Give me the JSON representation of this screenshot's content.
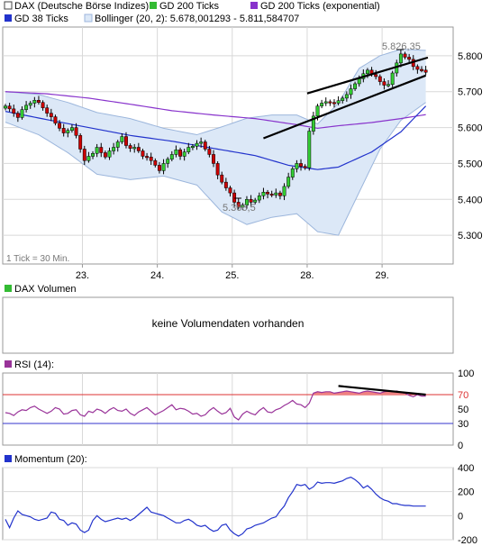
{
  "colors": {
    "price_bull": "#33cc33",
    "price_bear": "#cc0000",
    "gd38": "#2233cc",
    "gd200": "#33bb33",
    "gd200exp": "#8833cc",
    "bollinger_fill": "#dce8f7",
    "bollinger_line": "#9cb6dc",
    "rsi_line": "#993399",
    "rsi_upper": "#dd3333",
    "rsi_lower": "#3333cc",
    "rsi_fill": "#f08080",
    "momentum_line": "#2233cc",
    "trend_line": "#000000",
    "grid": "#d8d8d8"
  },
  "legend": {
    "dax": "DAX (Deutsche Börse Indizes)",
    "gd200": "GD 200 Ticks",
    "gd200exp": "GD 200 Ticks (exponential)",
    "gd38": "GD 38 Ticks",
    "bollinger": "Bollinger (20, 2): 5.678,001293 - 5.811,584707"
  },
  "price_panel": {
    "tick_note": "1 Tick = 30 Min.",
    "high_label": "5.826,35",
    "low_label": "5.366,5",
    "y_tick_labels": [
      "5.800",
      "5.700",
      "5.600",
      "5.500",
      "5.400",
      "5.300"
    ],
    "x_tick_labels": [
      "23.",
      "24.",
      "25.",
      "28.",
      "29."
    ]
  },
  "volume_panel": {
    "title": "DAX Volumen",
    "message": "keine Volumendaten vorhanden"
  },
  "rsi_panel": {
    "title": "RSI (14):",
    "y_tick_labels": [
      "100",
      "70",
      "50",
      "30",
      "0"
    ]
  },
  "momentum_panel": {
    "title": "Momentum (20):",
    "y_tick_labels": [
      "400",
      "200",
      "0",
      "-200"
    ]
  },
  "chart_data": [
    {
      "type": "candlestick",
      "title": "DAX (Deutsche Börse Indizes)",
      "ylim": [
        5220,
        5880
      ],
      "y_ticks": [
        5800,
        5700,
        5600,
        5500,
        5400,
        5300
      ],
      "x_labels": [
        "23.",
        "24.",
        "25.",
        "28.",
        "29."
      ],
      "bar_interval": "30 Min.",
      "high": 5826.35,
      "low": 5366.5,
      "closes": [
        5660,
        5652,
        5640,
        5628,
        5650,
        5662,
        5668,
        5676,
        5670,
        5655,
        5640,
        5630,
        5612,
        5598,
        5585,
        5592,
        5600,
        5578,
        5540,
        5508,
        5520,
        5528,
        5545,
        5530,
        5518,
        5535,
        5545,
        5560,
        5575,
        5550,
        5542,
        5545,
        5535,
        5520,
        5518,
        5508,
        5495,
        5480,
        5500,
        5512,
        5525,
        5538,
        5520,
        5532,
        5545,
        5548,
        5556,
        5560,
        5540,
        5525,
        5500,
        5468,
        5448,
        5432,
        5418,
        5392,
        5378,
        5384,
        5400,
        5392,
        5398,
        5410,
        5420,
        5415,
        5412,
        5418,
        5410,
        5436,
        5462,
        5485,
        5500,
        5492,
        5488,
        5590,
        5632,
        5660,
        5668,
        5672,
        5670,
        5668,
        5675,
        5682,
        5692,
        5708,
        5722,
        5736,
        5750,
        5760,
        5748,
        5742,
        5728,
        5718,
        5720,
        5752,
        5780,
        5805,
        5796,
        5790,
        5770,
        5762,
        5760,
        5754
      ],
      "series": [
        {
          "name": "GD 38 Ticks",
          "values": [
            [
              0,
              5645
            ],
            [
              10,
              5622
            ],
            [
              20,
              5600
            ],
            [
              30,
              5578
            ],
            [
              40,
              5562
            ],
            [
              50,
              5542
            ],
            [
              60,
              5522
            ],
            [
              68,
              5495
            ],
            [
              75,
              5483
            ],
            [
              80,
              5490
            ],
            [
              88,
              5532
            ],
            [
              95,
              5588
            ],
            [
              101,
              5660
            ]
          ]
        },
        {
          "name": "GD 200 Ticks (exponential)",
          "values": [
            [
              0,
              5700
            ],
            [
              10,
              5694
            ],
            [
              20,
              5682
            ],
            [
              30,
              5665
            ],
            [
              40,
              5647
            ],
            [
              50,
              5635
            ],
            [
              60,
              5625
            ],
            [
              70,
              5608
            ],
            [
              75,
              5598
            ],
            [
              80,
              5605
            ],
            [
              88,
              5614
            ],
            [
              95,
              5625
            ],
            [
              101,
              5636
            ]
          ]
        },
        {
          "name": "Bollinger upper",
          "values": [
            [
              0,
              5700
            ],
            [
              8,
              5692
            ],
            [
              15,
              5670
            ],
            [
              22,
              5642
            ],
            [
              30,
              5625
            ],
            [
              38,
              5598
            ],
            [
              46,
              5580
            ],
            [
              52,
              5602
            ],
            [
              58,
              5626
            ],
            [
              64,
              5635
            ],
            [
              70,
              5635
            ],
            [
              75,
              5610
            ],
            [
              80,
              5668
            ],
            [
              85,
              5765
            ],
            [
              90,
              5800
            ],
            [
              95,
              5818
            ],
            [
              101,
              5815
            ]
          ]
        },
        {
          "name": "Bollinger lower",
          "values": [
            [
              0,
              5615
            ],
            [
              8,
              5580
            ],
            [
              15,
              5530
            ],
            [
              22,
              5470
            ],
            [
              30,
              5455
            ],
            [
              38,
              5465
            ],
            [
              46,
              5440
            ],
            [
              52,
              5365
            ],
            [
              58,
              5330
            ],
            [
              64,
              5350
            ],
            [
              70,
              5360
            ],
            [
              75,
              5310
            ],
            [
              80,
              5300
            ],
            [
              85,
              5420
            ],
            [
              90,
              5540
            ],
            [
              95,
              5620
            ],
            [
              101,
              5670
            ]
          ]
        },
        {
          "name": "Trend line 1",
          "values": [
            [
              72.5,
              5695
            ],
            [
              101.5,
              5795
            ]
          ]
        },
        {
          "name": "Trend line 2",
          "values": [
            [
              62,
              5570
            ],
            [
              101,
              5745
            ]
          ]
        }
      ]
    },
    {
      "type": "line",
      "title": "RSI (14):",
      "ylim": [
        0,
        100
      ],
      "y_ticks": [
        100,
        70,
        50,
        30,
        0
      ],
      "levels": [
        70,
        30
      ],
      "values": [
        45,
        44,
        41,
        46,
        49,
        48,
        52,
        54,
        50,
        47,
        44,
        47,
        52,
        50,
        43,
        44,
        48,
        49,
        42,
        40,
        47,
        45,
        50,
        48,
        44,
        49,
        52,
        48,
        47,
        50,
        44,
        41,
        46,
        49,
        52,
        47,
        42,
        45,
        48,
        52,
        56,
        49,
        51,
        50,
        47,
        43,
        44,
        40,
        42,
        48,
        52,
        47,
        43,
        45,
        51,
        39,
        35,
        43,
        47,
        44,
        42,
        48,
        52,
        46,
        45,
        49,
        51,
        55,
        58,
        62,
        57,
        56,
        52,
        58,
        72,
        74,
        73,
        74,
        74,
        72,
        73,
        74,
        75,
        74,
        73,
        72,
        74,
        75,
        74,
        73,
        72,
        74,
        75,
        74,
        75,
        73,
        72,
        69,
        67,
        70,
        68,
        68
      ],
      "trend_line": [
        [
          80,
          82
        ],
        [
          101,
          70
        ]
      ]
    },
    {
      "type": "line",
      "title": "Momentum (20):",
      "ylim": [
        -200,
        400
      ],
      "y_ticks": [
        400,
        200,
        0,
        -200
      ],
      "values": [
        -30,
        -100,
        -20,
        40,
        10,
        0,
        -10,
        -30,
        -40,
        -30,
        -20,
        30,
        20,
        -30,
        -40,
        -80,
        -60,
        -70,
        -120,
        -140,
        -120,
        -40,
        0,
        -30,
        -50,
        -40,
        -30,
        -20,
        -30,
        -20,
        -40,
        -20,
        10,
        40,
        70,
        30,
        20,
        10,
        0,
        -20,
        -40,
        -60,
        -60,
        -40,
        -30,
        -50,
        -80,
        -90,
        -80,
        -110,
        -130,
        -120,
        -80,
        -70,
        -120,
        -150,
        -170,
        -150,
        -110,
        -100,
        -80,
        -70,
        -60,
        -40,
        -20,
        -10,
        40,
        80,
        150,
        200,
        260,
        250,
        260,
        220,
        240,
        280,
        270,
        275,
        275,
        270,
        280,
        290,
        310,
        320,
        300,
        270,
        230,
        250,
        220,
        180,
        150,
        130,
        120,
        100,
        100,
        90,
        85,
        85,
        80,
        80,
        80,
        80
      ]
    }
  ]
}
